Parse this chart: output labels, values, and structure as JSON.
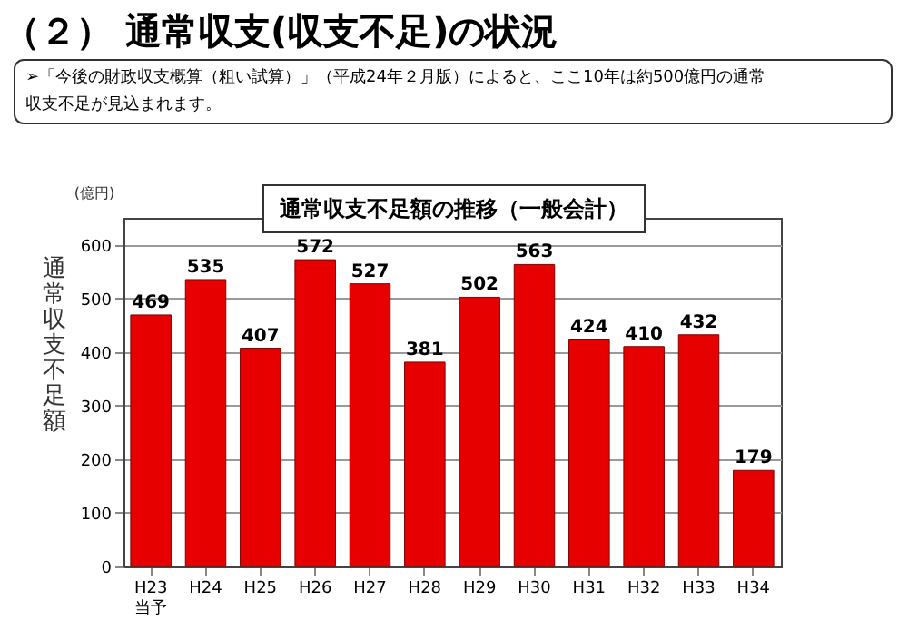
{
  "chart_data": {
    "type": "bar",
    "title": "（２） 通常収支(収支不足)の状況",
    "subtitle": "➢「今後の財政収支概算（粗い試算）」（平成24年２月版）によると、ここ10年は約500億円の通常収支不足が見込まれます。",
    "annotations": [
      "通常収支不足額の推移（一般会計）",
      "(億円)"
    ],
    "ylabel": "通常収支不足額",
    "categories": [
      "H23\n当予",
      "H24",
      "H25",
      "H26",
      "H27",
      "H28",
      "H29",
      "H30",
      "H31",
      "H32",
      "H33",
      "H34"
    ],
    "values": [
      469,
      535,
      407,
      572,
      527,
      381,
      502,
      563,
      424,
      410,
      432,
      179
    ],
    "color": "#e60000",
    "data_labels": true,
    "grid": "y",
    "ylim": [
      0,
      650
    ],
    "yticks": [
      0,
      100,
      200,
      300,
      400,
      500,
      600
    ]
  }
}
